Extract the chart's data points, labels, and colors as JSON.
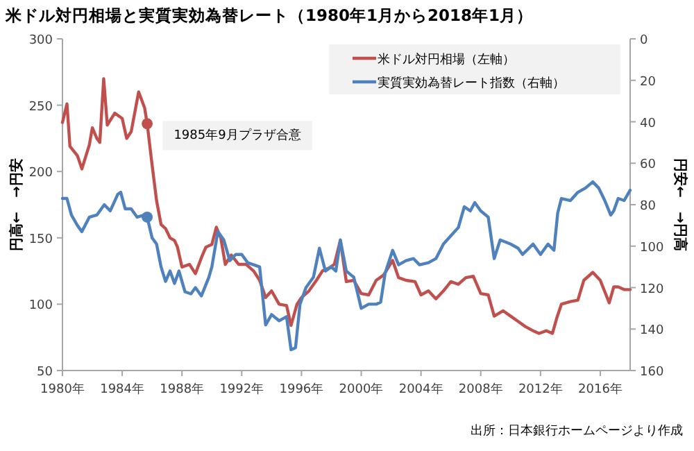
{
  "chart_data": {
    "type": "line",
    "title": "米ドル対円相場と実質実効為替レート（1980年1月から2018年1月）",
    "ylabel": "円高←　→円安",
    "y2label": "円安←　→円高",
    "xlim": [
      1980,
      2018
    ],
    "xticks": [
      {
        "value": 1980,
        "label": "1980年"
      },
      {
        "value": 1984,
        "label": "1984年"
      },
      {
        "value": 1988,
        "label": "1988年"
      },
      {
        "value": 1992,
        "label": "1992年"
      },
      {
        "value": 1996,
        "label": "1996年"
      },
      {
        "value": 2000,
        "label": "2000年"
      },
      {
        "value": 2004,
        "label": "2004年"
      },
      {
        "value": 2008,
        "label": "2008年"
      },
      {
        "value": 2012,
        "label": "2012年"
      },
      {
        "value": 2016,
        "label": "2016年"
      }
    ],
    "ylim": [
      50,
      300
    ],
    "yticks": [
      50,
      100,
      150,
      200,
      250,
      300
    ],
    "y2lim": [
      160,
      0
    ],
    "y2ticks": [
      0,
      20,
      40,
      60,
      80,
      100,
      120,
      140,
      160
    ],
    "legend": "top right",
    "annotations": [
      {
        "text": "1985年9月プラザ合意",
        "x": 1985.67,
        "y": 236
      },
      "出所：日本銀行ホームページより作成"
    ],
    "series": [
      {
        "name": "米ドル対円相場（左軸）",
        "color": "#c0504d",
        "x": [
          1980.0,
          1980.3,
          1980.5,
          1981.0,
          1981.3,
          1981.8,
          1982.0,
          1982.3,
          1982.5,
          1982.76,
          1983.0,
          1983.5,
          1984.0,
          1984.3,
          1984.6,
          1985.1,
          1985.5,
          1985.67,
          1986.0,
          1986.3,
          1986.6,
          1986.9,
          1987.2,
          1987.5,
          1987.7,
          1988.0,
          1988.5,
          1988.9,
          1989.3,
          1989.6,
          1990.0,
          1990.3,
          1990.6,
          1990.9,
          1991.3,
          1991.8,
          1992.3,
          1992.8,
          1993.2,
          1993.6,
          1994.0,
          1994.5,
          1995.0,
          1995.3,
          1995.7,
          1996.0,
          1996.5,
          1997.0,
          1997.4,
          1997.8,
          1998.2,
          1998.6,
          1999.0,
          1999.5,
          2000.0,
          2000.5,
          2001.0,
          2001.5,
          2002.1,
          2002.5,
          2003.0,
          2003.6,
          2004.0,
          2004.5,
          2005.0,
          2005.5,
          2006.0,
          2006.5,
          2007.0,
          2007.5,
          2008.0,
          2008.5,
          2008.9,
          2009.5,
          2010.0,
          2010.5,
          2011.0,
          2011.5,
          2011.9,
          2012.4,
          2012.8,
          2013.1,
          2013.4,
          2014.0,
          2014.5,
          2014.9,
          2015.5,
          2016.0,
          2016.6,
          2016.9,
          2017.2,
          2017.6,
          2018.0
        ],
        "values": [
          237,
          251,
          219,
          212,
          202,
          220,
          233,
          225,
          222,
          270,
          235,
          244,
          240,
          225,
          230,
          260,
          248,
          236,
          205,
          178,
          160,
          157,
          150,
          148,
          143,
          128,
          130,
          123,
          135,
          143,
          145,
          158,
          150,
          130,
          137,
          130,
          130,
          125,
          118,
          105,
          110,
          100,
          99,
          84,
          100,
          105,
          110,
          118,
          125,
          127,
          130,
          148,
          117,
          118,
          108,
          107,
          118,
          122,
          133,
          120,
          118,
          117,
          107,
          110,
          104,
          110,
          117,
          115,
          120,
          121,
          108,
          107,
          91,
          95,
          91,
          87,
          83,
          80,
          78,
          80,
          78,
          90,
          100,
          102,
          103,
          118,
          124,
          118,
          101,
          113,
          113,
          111,
          111
        ]
      },
      {
        "name": "実質実効為替レート指数（右軸）",
        "color": "#4f81bd",
        "axis": "y2",
        "x": [
          1980.0,
          1980.3,
          1980.6,
          1981.0,
          1981.3,
          1981.8,
          1982.3,
          1982.8,
          1983.2,
          1983.7,
          1983.9,
          1984.2,
          1984.6,
          1985.0,
          1985.5,
          1985.67,
          1986.0,
          1986.3,
          1986.6,
          1986.9,
          1987.2,
          1987.5,
          1987.8,
          1988.2,
          1988.6,
          1988.9,
          1989.3,
          1989.8,
          1990.0,
          1990.4,
          1990.8,
          1991.2,
          1991.6,
          1992.0,
          1992.4,
          1992.8,
          1993.2,
          1993.6,
          1994.0,
          1994.5,
          1995.0,
          1995.3,
          1995.6,
          1995.9,
          1996.3,
          1996.8,
          1997.2,
          1997.6,
          1998.0,
          1998.3,
          1998.6,
          1999.0,
          1999.5,
          2000.0,
          2000.5,
          2001.0,
          2001.3,
          2001.6,
          2002.1,
          2002.5,
          2003.0,
          2003.5,
          2003.9,
          2004.5,
          2005.0,
          2005.5,
          2006.0,
          2006.5,
          2006.9,
          2007.3,
          2007.6,
          2008.0,
          2008.5,
          2008.9,
          2009.3,
          2010.0,
          2010.5,
          2010.8,
          2011.5,
          2012.0,
          2012.5,
          2012.9,
          2013.15,
          2013.4,
          2014.0,
          2014.5,
          2015.0,
          2015.5,
          2015.9,
          2016.3,
          2016.7,
          2016.9,
          2017.2,
          2017.6,
          2018.0
        ],
        "values": [
          77,
          77,
          85,
          90,
          93,
          86,
          85,
          80,
          83,
          75,
          74,
          82,
          82,
          86,
          85,
          86,
          96,
          99,
          110,
          117,
          112,
          118,
          112,
          122,
          123,
          120,
          124,
          115,
          110,
          93,
          97,
          107,
          104,
          104,
          108,
          109,
          110,
          138,
          133,
          136,
          134,
          150,
          149,
          128,
          120,
          115,
          101,
          112,
          110,
          112,
          97,
          112,
          115,
          130,
          128,
          128,
          127,
          113,
          102,
          109,
          107,
          106,
          109,
          108,
          106,
          99,
          95,
          91,
          81,
          83,
          79,
          83,
          86,
          106,
          97,
          99,
          101,
          104,
          99,
          104,
          99,
          102,
          84,
          77,
          78,
          74,
          72,
          69,
          72,
          78,
          85,
          83,
          77,
          78,
          73
        ]
      },
      {
        "type": "scatter",
        "color": "#c0504d",
        "x": [
          1985.67
        ],
        "values": [
          236
        ]
      },
      {
        "type": "scatter",
        "color": "#4f81bd",
        "axis": "y2",
        "x": [
          1985.67
        ],
        "values": [
          86
        ]
      }
    ]
  }
}
